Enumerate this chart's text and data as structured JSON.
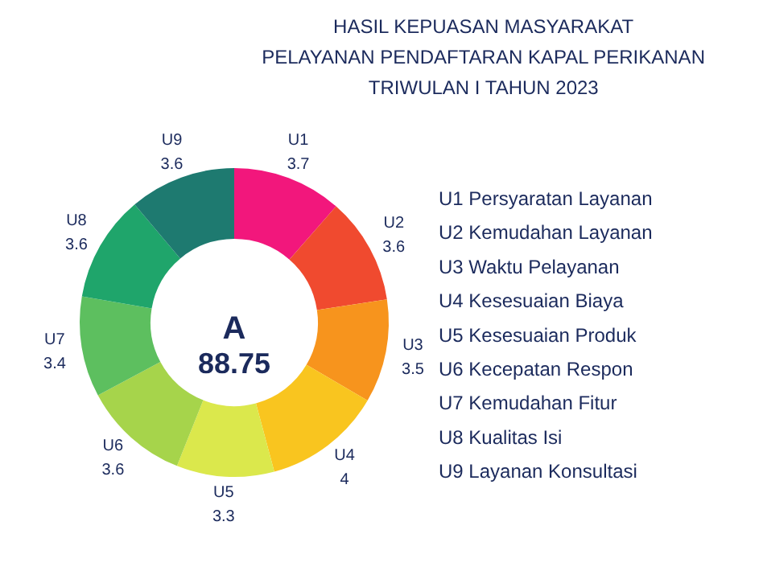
{
  "chart_data": {
    "type": "donut",
    "title": "HASIL KEPUASAN MASYARAKAT\nPELAYANAN PENDAFTARAN KAPAL PERIKANAN\nTRIWULAN I TAHUN 2023",
    "categories": [
      "U1",
      "U2",
      "U3",
      "U4",
      "U5",
      "U6",
      "U7",
      "U8",
      "U9"
    ],
    "values": [
      3.7,
      3.6,
      3.5,
      4,
      3.3,
      3.6,
      3.4,
      3.6,
      3.6
    ],
    "colors": [
      "#f2177c",
      "#f04a2f",
      "#f7941d",
      "#f9c51f",
      "#dbe84c",
      "#a6d44b",
      "#5dbf5f",
      "#1fa56b",
      "#1e7a70"
    ],
    "data_labels": true,
    "annotations": [
      "A",
      "88.75",
      "U1 Persyaratan Layanan",
      "U2 Kemudahan Layanan",
      "U3 Waktu Pelayanan",
      "U4 Kesesuaian Biaya",
      "U5 Kesesuaian Produk",
      "U6 Kecepatan Respon",
      "U7 Kemudahan Fitur",
      "U8 Kualitas Isi",
      "U9 Layanan Konsultasi"
    ]
  }
}
